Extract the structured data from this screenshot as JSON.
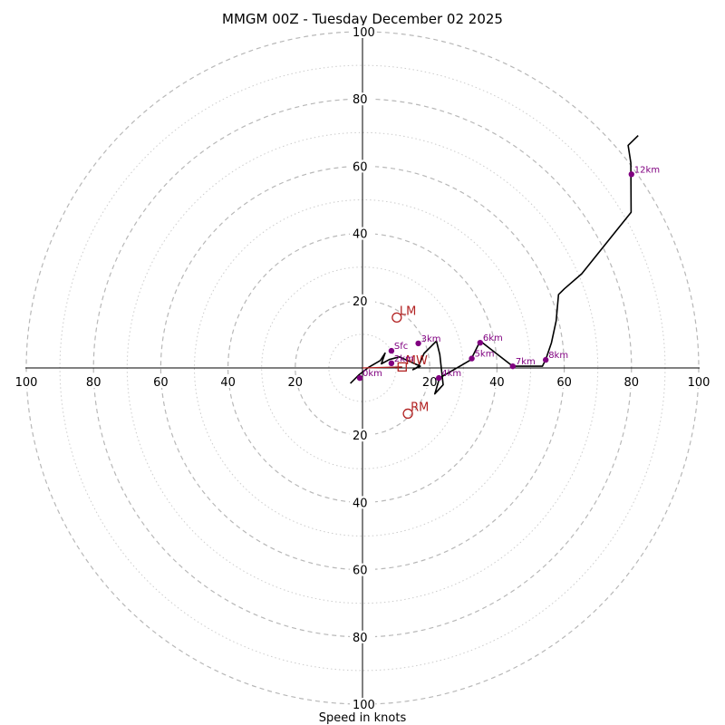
{
  "chart_data": {
    "type": "hodograph",
    "title": "MMGM 00Z - Tuesday December 02 2025",
    "xlabel": "Speed in knots",
    "range": [
      -100,
      100
    ],
    "major_rings": [
      20,
      40,
      60,
      80,
      100
    ],
    "minor_rings": [
      10,
      30,
      50,
      70,
      90
    ],
    "x_ticks": [
      {
        "value": -100,
        "label": "100"
      },
      {
        "value": -80,
        "label": "80"
      },
      {
        "value": -60,
        "label": "60"
      },
      {
        "value": -40,
        "label": "40"
      },
      {
        "value": -20,
        "label": "20"
      },
      {
        "value": 20,
        "label": "20"
      },
      {
        "value": 40,
        "label": "40"
      },
      {
        "value": 60,
        "label": "60"
      },
      {
        "value": 80,
        "label": "80"
      },
      {
        "value": 100,
        "label": "100"
      }
    ],
    "y_ticks": [
      {
        "value": 100,
        "label": "100"
      },
      {
        "value": 80,
        "label": "80"
      },
      {
        "value": 60,
        "label": "60"
      },
      {
        "value": 40,
        "label": "40"
      },
      {
        "value": 20,
        "label": "20"
      },
      {
        "value": -20,
        "label": "20"
      },
      {
        "value": -40,
        "label": "40"
      },
      {
        "value": -60,
        "label": "60"
      },
      {
        "value": -80,
        "label": "80"
      },
      {
        "value": -100,
        "label": "100"
      }
    ],
    "trace_color": "#000000",
    "trace": [
      [
        -3.6,
        -4.6
      ],
      [
        -1.1,
        -2.1
      ],
      [
        2,
        0.3
      ],
      [
        5.3,
        2.2
      ],
      [
        6.7,
        4.4
      ],
      [
        5.6,
        1.2
      ],
      [
        8,
        2.5
      ],
      [
        11,
        3.3
      ],
      [
        17.2,
        0.5
      ],
      [
        15,
        -0.5
      ],
      [
        16.6,
        0.4
      ],
      [
        18.3,
        4.3
      ],
      [
        22,
        8
      ],
      [
        23,
        4
      ],
      [
        24,
        -5
      ],
      [
        21.5,
        -7.7
      ],
      [
        22.9,
        -3
      ],
      [
        32.2,
        2.4
      ],
      [
        35,
        8
      ],
      [
        44.7,
        0.5
      ],
      [
        53.5,
        0.5
      ],
      [
        54.5,
        2.5
      ],
      [
        56.2,
        7.5
      ],
      [
        57.6,
        14
      ],
      [
        58.3,
        21.8
      ],
      [
        60,
        23.5
      ],
      [
        65.2,
        28
      ],
      [
        79.9,
        46.3
      ],
      [
        79.8,
        61
      ],
      [
        79,
        66.2
      ],
      [
        82,
        69.1
      ]
    ],
    "height_color": "#800080",
    "height_markers": [
      {
        "label": "0km",
        "u": -0.8,
        "v": -3
      },
      {
        "label": "Sfc",
        "u": 8.6,
        "v": 5.1
      },
      {
        "label": "2km",
        "u": 8.6,
        "v": 1.4
      },
      {
        "label": "3km",
        "u": 16.6,
        "v": 7.3
      },
      {
        "label": "4km",
        "u": 22.7,
        "v": -3
      },
      {
        "label": "5km",
        "u": 32.5,
        "v": 2.8
      },
      {
        "label": "6km",
        "u": 35,
        "v": 7.5
      },
      {
        "label": "7km",
        "u": 44.7,
        "v": 0.5
      },
      {
        "label": "8km",
        "u": 54.5,
        "v": 2.4
      },
      {
        "label": "12km",
        "u": 80,
        "v": 57.6
      }
    ],
    "motion_color": "#b22222",
    "storm_motion": [
      {
        "label": "LM",
        "u": 10.2,
        "v": 15
      },
      {
        "label": "RM",
        "u": 13.5,
        "v": -13.6
      },
      {
        "label": "MW",
        "u": 11.8,
        "v": 0.3
      }
    ],
    "motion_vector": {
      "from": [
        0,
        0
      ],
      "to": [
        11.8,
        0.3
      ]
    }
  }
}
